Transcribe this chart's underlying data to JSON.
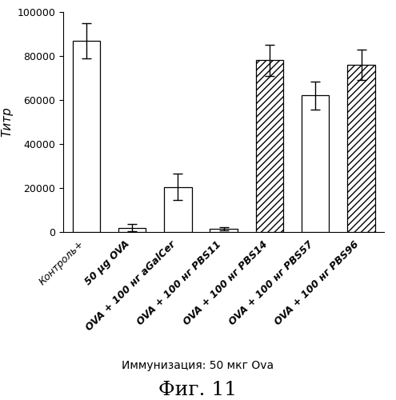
{
  "categories": [
    "Контроль+",
    "50 μg OVA",
    "OVA + 100 нг aGalCer",
    "OVA + 100 нг PBS11",
    "OVA + 100 нг PBS14",
    "OVA + 100 нг PBS57",
    "OVA + 100 нг PBS96"
  ],
  "values": [
    87000,
    2000,
    20500,
    1500,
    78000,
    62000,
    76000
  ],
  "errors": [
    8000,
    1500,
    6000,
    800,
    7000,
    6500,
    7000
  ],
  "hatches": [
    "",
    "",
    "=====",
    "",
    "////",
    "",
    "////"
  ],
  "bar_colors": [
    "white",
    "white",
    "white",
    "white",
    "white",
    "white",
    "white"
  ],
  "bar_edgecolor": "black",
  "ylabel": "Титр",
  "ylim": [
    0,
    100000
  ],
  "yticks": [
    0,
    20000,
    40000,
    60000,
    80000,
    100000
  ],
  "subtitle": "Иммунизация: 50 мкг Ova",
  "figure_title": "Фиг. 11",
  "subtitle_fontsize": 10,
  "figure_title_fontsize": 18,
  "ylabel_fontsize": 11,
  "tick_label_fontsize": 9
}
